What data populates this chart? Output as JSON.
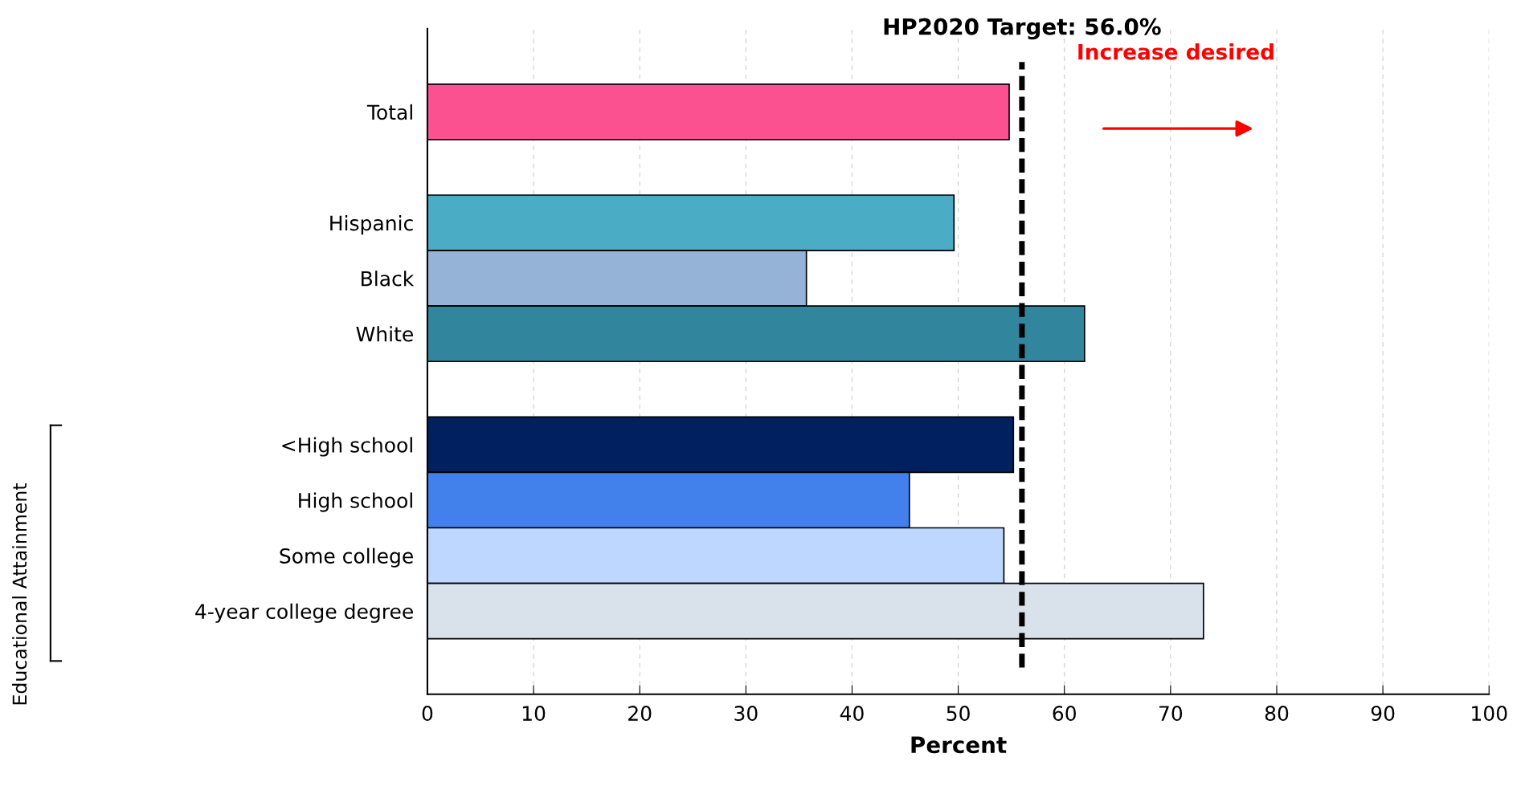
{
  "chart_data": {
    "type": "bar",
    "orientation": "horizontal",
    "xlabel": "Percent",
    "categories": [
      "Total",
      null,
      "Hispanic",
      "Black",
      "White",
      null,
      "<High school",
      "High school",
      "Some college",
      "4-year college degree"
    ],
    "values": [
      54.8,
      null,
      49.6,
      35.7,
      61.9,
      null,
      55.2,
      45.4,
      54.3,
      73.1
    ],
    "colors": [
      "#fc5190",
      "#ffffff",
      "#4bacc6",
      "#95b3d7",
      "#31859c",
      "#ffffff",
      "#002060",
      "#4280ec",
      "#bdd7ff",
      "#d9e1eb"
    ],
    "xlim": [
      0,
      100
    ],
    "xticks": [
      0,
      10,
      20,
      30,
      40,
      50,
      60,
      70,
      80,
      90,
      100
    ],
    "grid": "x",
    "ref_lines": [
      {
        "axis": "x",
        "value": 56.0,
        "label": "HP2020 Target: 56.0%",
        "color": "#000000",
        "line_style": "dashed"
      }
    ],
    "annotations": [
      "Increase desired",
      "Educational Attainment"
    ]
  }
}
